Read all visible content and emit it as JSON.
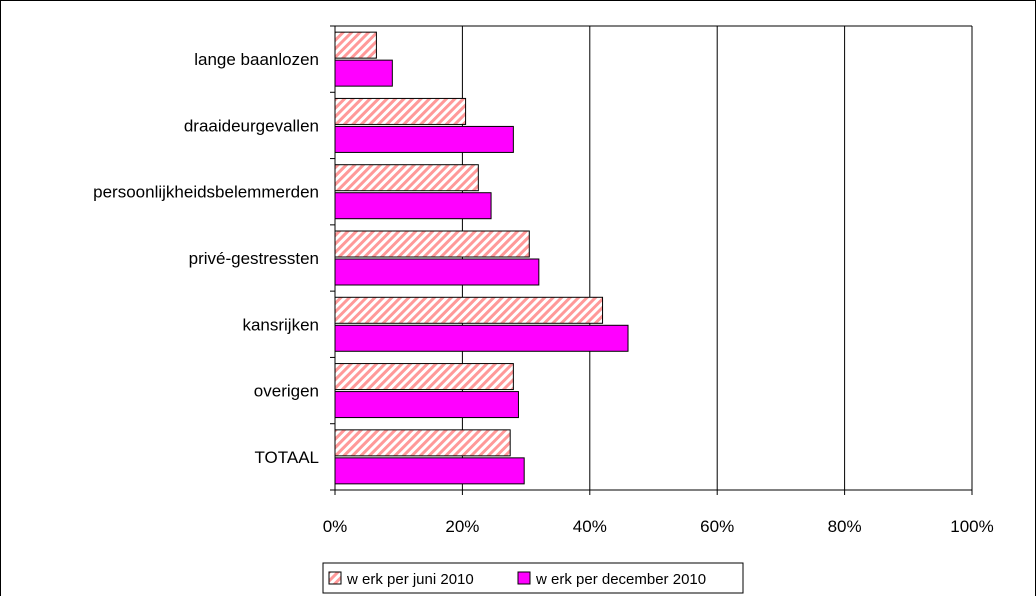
{
  "chart_data": {
    "type": "bar",
    "orientation": "horizontal",
    "categories": [
      "lange baanlozen",
      "draaideurgevallen",
      "persoonlijkheidsbelemmerden",
      "privé-gestressten",
      "kansrijken",
      "overigen",
      "TOTAAL"
    ],
    "series": [
      {
        "name": "w erk per juni 2010",
        "values": [
          6.5,
          20.5,
          22.5,
          30.5,
          42.0,
          28.0,
          27.5
        ],
        "color": "#ff9999",
        "pattern": "diagonal-hatch"
      },
      {
        "name": "w erk per december 2010",
        "values": [
          9.0,
          28.0,
          24.5,
          32.0,
          46.0,
          28.8,
          29.7
        ],
        "color": "#ff00ff",
        "pattern": "solid"
      }
    ],
    "xlim": [
      0,
      100
    ],
    "xticks": [
      "0%",
      "20%",
      "40%",
      "60%",
      "80%",
      "100%"
    ],
    "grid": true,
    "legend": "bottom"
  }
}
